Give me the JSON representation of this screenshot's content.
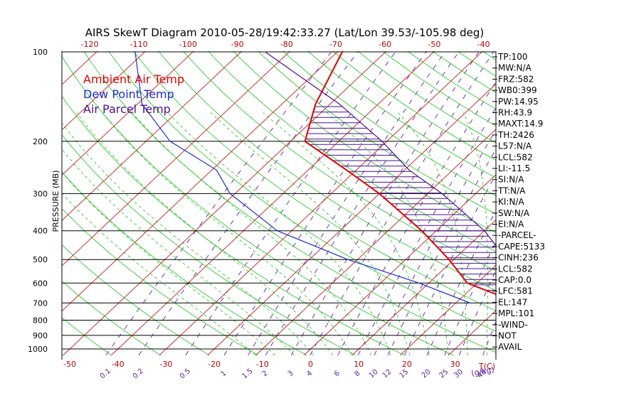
{
  "chart_data": {
    "type": "line",
    "title": "AIRS SkewT Diagram 2010-05-28/19:42:33.27 (Lat/Lon 39.53/-105.98 deg)",
    "ylabel": "PRESSURE (MB)",
    "y_scale": "log",
    "ylim": [
      1000,
      100
    ],
    "xlim_bottom_degC": [
      -50,
      40
    ],
    "pressure_ticks": [
      100,
      200,
      300,
      400,
      500,
      600,
      700,
      800,
      900,
      1000
    ],
    "top_temp_ticks": [
      "-120",
      "-110",
      "-100",
      "-90",
      "-80",
      "-70",
      "-60",
      "-50",
      "-40"
    ],
    "bottom_temp_ticks": [
      "-50",
      "-40",
      "-30",
      "-20",
      "-10",
      "0",
      "10",
      "20",
      "30"
    ],
    "bottom_temp_unit": "T(C)",
    "mixing_ratio_labels": [
      "0.1",
      "0.2",
      "0.5",
      "1",
      "1.5",
      "2",
      "3",
      "4",
      "6",
      "8",
      "10",
      "12",
      "15",
      "20",
      "25",
      "30",
      "40"
    ],
    "mixing_ratio_unit": "(g/kg)",
    "legend": [
      "Ambient Air Temp",
      "Dew Point Temp",
      "Air Parcel Temp"
    ],
    "legend_position": "top-left",
    "colors": {
      "ambient": "#e00000",
      "dewpoint": "#1a2bd6",
      "parcel": "#4a1090",
      "isotherm": "#c83232",
      "dry_adiabat": "#32c832",
      "moist_adiabat": "#32c832",
      "mixing_ratio": "#6020a0",
      "isobar": "#000000",
      "cape_hatch": "#4a1090"
    },
    "series": [
      {
        "name": "Ambient Air Temp",
        "points": [
          {
            "p": 700,
            "t": 33
          },
          {
            "p": 600,
            "t": 18
          },
          {
            "p": 500,
            "t": 9
          },
          {
            "p": 400,
            "t": -3
          },
          {
            "p": 300,
            "t": -20
          },
          {
            "p": 250,
            "t": -32
          },
          {
            "p": 200,
            "t": -47
          },
          {
            "p": 150,
            "t": -53
          },
          {
            "p": 100,
            "t": -59
          }
        ]
      },
      {
        "name": "Dew Point Temp",
        "points": [
          {
            "p": 700,
            "t": 23
          },
          {
            "p": 600,
            "t": 8
          },
          {
            "p": 500,
            "t": -12
          },
          {
            "p": 400,
            "t": -33
          },
          {
            "p": 300,
            "t": -51
          },
          {
            "p": 250,
            "t": -59
          },
          {
            "p": 200,
            "t": -75
          },
          {
            "p": 150,
            "t": -89
          },
          {
            "p": 100,
            "t": -102
          }
        ]
      },
      {
        "name": "Air Parcel Temp",
        "points": [
          {
            "p": 700,
            "t": 33
          },
          {
            "p": 600,
            "t": 27
          },
          {
            "p": 500,
            "t": 21
          },
          {
            "p": 400,
            "t": 10
          },
          {
            "p": 300,
            "t": -7
          },
          {
            "p": 250,
            "t": -19
          },
          {
            "p": 200,
            "t": -31
          },
          {
            "p": 150,
            "t": -48
          },
          {
            "p": 100,
            "t": -75
          }
        ]
      }
    ],
    "indices": [
      "TP:100",
      "MW:N/A",
      "FRZ:582",
      "WB0:399",
      "PW:14.95",
      "RH:43.9",
      "MAXT:14.9",
      "TH:2426",
      "L57:N/A",
      "LCL:582",
      "LI:-11.5",
      "SI:N/A",
      "TT:N/A",
      "KI:N/A",
      "SW:N/A",
      "EI:N/A",
      "-PARCEL-",
      "CAPE:5133",
      "CINH:236",
      "LCL:582",
      "CAP:0.0",
      "LFC:581",
      "EL:147",
      "MPL:101",
      "-WIND-",
      "NOT",
      "AVAIL"
    ]
  }
}
